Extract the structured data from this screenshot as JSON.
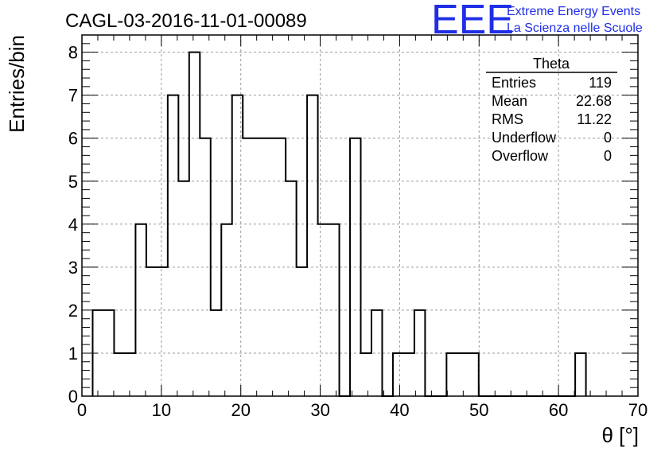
{
  "chart_data": {
    "type": "histogram",
    "title": "CAGL-03-2016-11-01-00089",
    "xlabel": "θ [°]",
    "ylabel": "Entries/bin",
    "xlim": [
      0,
      70
    ],
    "ylim": [
      0,
      8.4
    ],
    "x_ticks": [
      0,
      10,
      20,
      30,
      40,
      50,
      60,
      70
    ],
    "y_ticks": [
      0,
      1,
      2,
      3,
      4,
      5,
      6,
      7,
      8
    ],
    "grid": true,
    "bin_width": 1.35,
    "bins": [
      {
        "x0": 1.35,
        "x1": 4.05,
        "value": 2
      },
      {
        "x0": 4.05,
        "x1": 6.75,
        "value": 1
      },
      {
        "x0": 6.75,
        "x1": 8.1,
        "value": 4
      },
      {
        "x0": 8.1,
        "x1": 10.8,
        "value": 3
      },
      {
        "x0": 10.8,
        "x1": 12.15,
        "value": 7
      },
      {
        "x0": 12.15,
        "x1": 13.5,
        "value": 5
      },
      {
        "x0": 13.5,
        "x1": 14.85,
        "value": 8
      },
      {
        "x0": 14.85,
        "x1": 16.2,
        "value": 6
      },
      {
        "x0": 16.2,
        "x1": 17.55,
        "value": 2
      },
      {
        "x0": 17.55,
        "x1": 18.9,
        "value": 4
      },
      {
        "x0": 18.9,
        "x1": 20.25,
        "value": 7
      },
      {
        "x0": 20.25,
        "x1": 25.65,
        "value": 6
      },
      {
        "x0": 25.65,
        "x1": 27.0,
        "value": 5
      },
      {
        "x0": 27.0,
        "x1": 28.35,
        "value": 3
      },
      {
        "x0": 28.35,
        "x1": 29.7,
        "value": 7
      },
      {
        "x0": 29.7,
        "x1": 32.4,
        "value": 4
      },
      {
        "x0": 32.4,
        "x1": 33.75,
        "value": 0
      },
      {
        "x0": 33.75,
        "x1": 35.1,
        "value": 6
      },
      {
        "x0": 35.1,
        "x1": 36.45,
        "value": 1
      },
      {
        "x0": 36.45,
        "x1": 37.8,
        "value": 2
      },
      {
        "x0": 37.8,
        "x1": 39.15,
        "value": 0
      },
      {
        "x0": 39.15,
        "x1": 41.85,
        "value": 1
      },
      {
        "x0": 41.85,
        "x1": 43.2,
        "value": 2
      },
      {
        "x0": 43.2,
        "x1": 45.9,
        "value": 0
      },
      {
        "x0": 45.9,
        "x1": 49.95,
        "value": 1
      },
      {
        "x0": 49.95,
        "x1": 62.1,
        "value": 0
      },
      {
        "x0": 62.1,
        "x1": 63.45,
        "value": 1
      }
    ],
    "stats_box": {
      "title": "Theta",
      "rows": [
        {
          "label": "Entries",
          "value": "119"
        },
        {
          "label": "Mean",
          "value": "22.68"
        },
        {
          "label": "RMS",
          "value": "11.22"
        },
        {
          "label": "Underflow",
          "value": "0"
        },
        {
          "label": "Overflow",
          "value": "0"
        }
      ]
    }
  },
  "logo": {
    "mark": "EEE",
    "line1": "Extreme Energy Events",
    "line2": "La Scienza nelle Scuole",
    "color": "#1f2ee6"
  }
}
